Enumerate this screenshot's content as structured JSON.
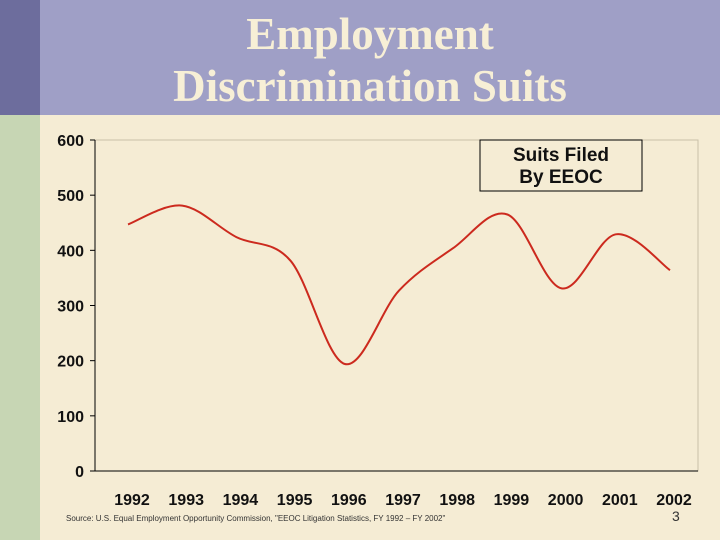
{
  "slide": {
    "title_line1": "Employment",
    "title_line2": "Discrimination Suits",
    "source": "Source: U.S. Equal Employment Opportunity Commission, \"EEOC Litigation Statistics, FY 1992 – FY 2002\"",
    "page_number": "3"
  },
  "colors": {
    "line": "#cc2a1e",
    "background": "#f5ecd4",
    "title_band": "#9f9fc6",
    "title_text": "#f7efd6"
  },
  "chart_data": {
    "type": "line",
    "categories": [
      "1992",
      "1993",
      "1994",
      "1995",
      "1996",
      "1997",
      "1998",
      "1999",
      "2000",
      "2001",
      "2002"
    ],
    "series": [
      {
        "name": "",
        "values": [
          447,
          481,
          424,
          381,
          194,
          327,
          404,
          465,
          331,
          429,
          364
        ]
      }
    ],
    "annotation": [
      "Suits Filed",
      "By EEOC"
    ],
    "ylim": [
      0,
      600
    ],
    "yticks": [
      "0",
      "100",
      "200",
      "300",
      "400",
      "500",
      "600"
    ],
    "title": "",
    "xlabel": "",
    "ylabel": "",
    "grid": false,
    "smooth": true
  }
}
